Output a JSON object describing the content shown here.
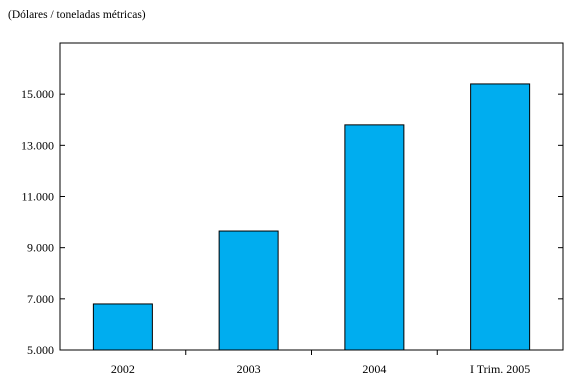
{
  "chart_data": {
    "type": "bar",
    "title": "",
    "subtitle": "(Dólares / toneladas métricas)",
    "xlabel": "",
    "ylabel": "",
    "categories": [
      "2002",
      "2003",
      "2004",
      "I Trim. 2005"
    ],
    "values": [
      6800,
      9650,
      13800,
      15400
    ],
    "ylim": [
      5000,
      17000
    ],
    "yticks": [
      5000,
      7000,
      9000,
      11000,
      13000,
      15000
    ],
    "ytick_labels": [
      "5.000",
      "7.000",
      "9.000",
      "11.000",
      "13.000",
      "15.000"
    ],
    "grid": false,
    "legend": "none",
    "bar_color": "#00ADEF",
    "bar_edge_color": "#000000"
  }
}
